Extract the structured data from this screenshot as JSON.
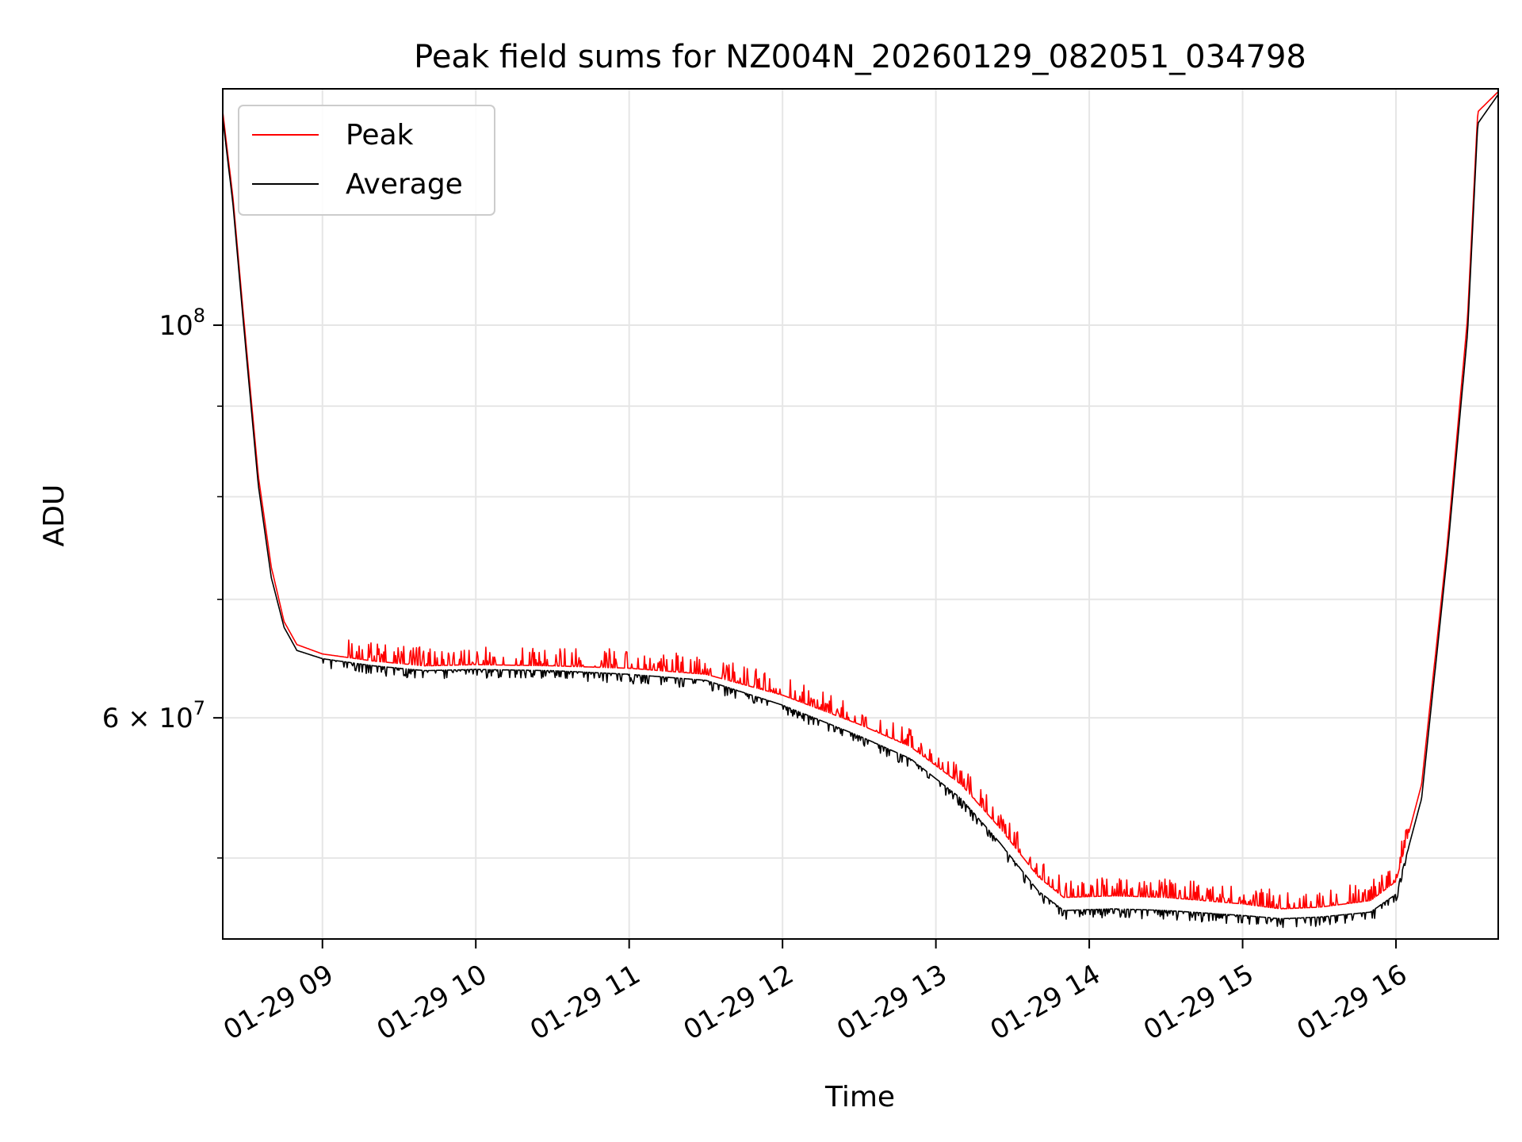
{
  "chart_data": {
    "type": "line",
    "title": "Peak field sums for NZ004N_20260129_082051_034798",
    "xlabel": "Time",
    "ylabel": "ADU",
    "y_scale": "log",
    "xlim": [
      "2026-01-29 08:21",
      "2026-01-29 16:40"
    ],
    "ylim": [
      45000000,
      136000000
    ],
    "grid": true,
    "legend_position": "top-left",
    "x_ticks": [
      {
        "x": "2026-01-29 09:00",
        "label": "01-29 09"
      },
      {
        "x": "2026-01-29 10:00",
        "label": "01-29 10"
      },
      {
        "x": "2026-01-29 11:00",
        "label": "01-29 11"
      },
      {
        "x": "2026-01-29 12:00",
        "label": "01-29 12"
      },
      {
        "x": "2026-01-29 13:00",
        "label": "01-29 13"
      },
      {
        "x": "2026-01-29 14:00",
        "label": "01-29 14"
      },
      {
        "x": "2026-01-29 15:00",
        "label": "01-29 15"
      },
      {
        "x": "2026-01-29 16:00",
        "label": "01-29 16"
      }
    ],
    "y_ticks_major": [
      {
        "y": 60000000,
        "label_base": "6 × 10",
        "label_exp": "7"
      },
      {
        "y": 100000000,
        "label_base": "10",
        "label_exp": "8"
      }
    ],
    "y_ticks_minor": [
      50000000,
      70000000,
      80000000,
      90000000
    ],
    "series": [
      {
        "name": "Peak",
        "color": "#ff0000",
        "x": [
          "2026-01-29 08:21",
          "2026-01-29 08:25",
          "2026-01-29 08:30",
          "2026-01-29 08:35",
          "2026-01-29 08:40",
          "2026-01-29 08:45",
          "2026-01-29 08:50",
          "2026-01-29 09:00",
          "2026-01-29 09:20",
          "2026-01-29 09:40",
          "2026-01-29 10:00",
          "2026-01-29 10:30",
          "2026-01-29 11:00",
          "2026-01-29 11:30",
          "2026-01-29 12:00",
          "2026-01-29 12:30",
          "2026-01-29 12:50",
          "2026-01-29 13:10",
          "2026-01-29 13:25",
          "2026-01-29 13:40",
          "2026-01-29 13:50",
          "2026-01-29 14:10",
          "2026-01-29 14:30",
          "2026-01-29 15:00",
          "2026-01-29 15:15",
          "2026-01-29 15:30",
          "2026-01-29 15:50",
          "2026-01-29 16:00",
          "2026-01-29 16:10",
          "2026-01-29 16:20",
          "2026-01-29 16:28",
          "2026-01-29 16:32",
          "2026-01-29 16:40"
        ],
        "values": [
          132000000,
          118000000,
          98000000,
          82000000,
          73000000,
          68000000,
          66000000,
          65200000,
          64600000,
          64200000,
          64300000,
          64200000,
          64000000,
          63500000,
          61800000,
          59500000,
          57800000,
          55000000,
          52000000,
          48800000,
          47500000,
          47600000,
          47500000,
          47100000,
          46800000,
          46900000,
          47300000,
          48500000,
          55000000,
          75000000,
          101000000,
          132000000,
          135500000
        ],
        "spike_amplitude": 0.025
      },
      {
        "name": "Average",
        "color": "#000000",
        "x": [
          "2026-01-29 08:21",
          "2026-01-29 08:25",
          "2026-01-29 08:30",
          "2026-01-29 08:35",
          "2026-01-29 08:40",
          "2026-01-29 08:45",
          "2026-01-29 08:50",
          "2026-01-29 09:00",
          "2026-01-29 09:20",
          "2026-01-29 09:40",
          "2026-01-29 10:00",
          "2026-01-29 10:30",
          "2026-01-29 11:00",
          "2026-01-29 11:30",
          "2026-01-29 12:00",
          "2026-01-29 12:30",
          "2026-01-29 12:50",
          "2026-01-29 13:10",
          "2026-01-29 13:25",
          "2026-01-29 13:40",
          "2026-01-29 13:50",
          "2026-01-29 14:10",
          "2026-01-29 14:30",
          "2026-01-29 15:00",
          "2026-01-29 15:15",
          "2026-01-29 15:30",
          "2026-01-29 15:50",
          "2026-01-29 16:00",
          "2026-01-29 16:10",
          "2026-01-29 16:20",
          "2026-01-29 16:28",
          "2026-01-29 16:32",
          "2026-01-29 16:40"
        ],
        "values": [
          131000000,
          117000000,
          97000000,
          81000000,
          72000000,
          67500000,
          65500000,
          64800000,
          64200000,
          63800000,
          63900000,
          63800000,
          63500000,
          63000000,
          61000000,
          58600000,
          56900000,
          54000000,
          51000000,
          47900000,
          46700000,
          46800000,
          46700000,
          46400000,
          46200000,
          46300000,
          46600000,
          47700000,
          54000000,
          74000000,
          99000000,
          130000000,
          135000000
        ]
      }
    ]
  }
}
